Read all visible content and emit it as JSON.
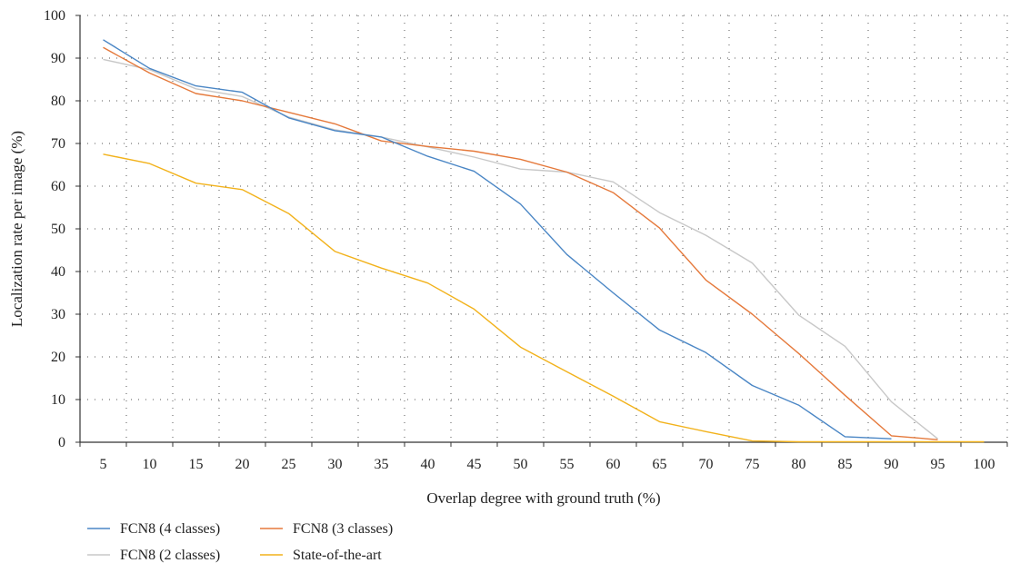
{
  "chart_data": {
    "type": "line",
    "title": "",
    "xlabel": "Overlap degree with ground truth (%)",
    "ylabel": "Localization rate per image (%)",
    "x": [
      5,
      10,
      15,
      20,
      25,
      30,
      35,
      40,
      45,
      50,
      55,
      60,
      65,
      70,
      75,
      80,
      85,
      90,
      95,
      100
    ],
    "xticks": [
      "5",
      "10",
      "15",
      "20",
      "25",
      "30",
      "35",
      "40",
      "45",
      "50",
      "55",
      "60",
      "65",
      "70",
      "75",
      "80",
      "85",
      "90",
      "95",
      "100"
    ],
    "yticks": [
      "0",
      "10",
      "20",
      "30",
      "40",
      "50",
      "60",
      "70",
      "80",
      "90",
      "100"
    ],
    "ylim": [
      0,
      100
    ],
    "grid": true,
    "legend_position": "bottom-left",
    "series": [
      {
        "name": "FCN8 (4 classes)",
        "color": "#4a86c5",
        "x": [
          5,
          10,
          15,
          20,
          25,
          30,
          35,
          40,
          45,
          50,
          55,
          60,
          65,
          70,
          75,
          80,
          85,
          90
        ],
        "values": [
          94.3,
          87.6,
          83.5,
          82.0,
          76.0,
          73.0,
          71.5,
          67.0,
          63.5,
          55.8,
          44.0,
          35.0,
          26.3,
          21.0,
          13.3,
          8.7,
          1.3,
          0.8
        ]
      },
      {
        "name": "FCN8 (3 classes)",
        "color": "#e5793b",
        "x": [
          5,
          10,
          15,
          20,
          25,
          30,
          35,
          40,
          45,
          50,
          55,
          60,
          65,
          70,
          75,
          80,
          85,
          90,
          95
        ],
        "values": [
          92.5,
          86.5,
          81.7,
          80.0,
          77.3,
          74.6,
          70.6,
          69.3,
          68.2,
          66.3,
          63.3,
          58.5,
          50.2,
          38.0,
          30.0,
          20.8,
          11.0,
          1.5,
          0.6
        ]
      },
      {
        "name": "FCN8 (2 classes)",
        "color": "#c8c8c8",
        "x": [
          5,
          10,
          15,
          20,
          25,
          30,
          35,
          40,
          45,
          50,
          55,
          60,
          65,
          70,
          75,
          80,
          85,
          90,
          95
        ],
        "values": [
          89.7,
          87.3,
          82.8,
          81.0,
          76.2,
          73.2,
          71.5,
          69.2,
          66.8,
          64.0,
          63.3,
          61.0,
          53.8,
          48.5,
          42.0,
          29.8,
          22.5,
          9.5,
          0.8
        ]
      },
      {
        "name": "State-of-the-art",
        "color": "#f2b21b",
        "x": [
          5,
          10,
          15,
          20,
          25,
          30,
          35,
          40,
          45,
          50,
          55,
          60,
          65,
          70,
          75,
          80,
          85,
          90,
          95,
          100
        ],
        "values": [
          67.5,
          65.3,
          60.7,
          59.2,
          53.6,
          44.7,
          40.8,
          37.3,
          31.2,
          22.3,
          16.5,
          10.8,
          4.8,
          2.5,
          0.3,
          0.1,
          0.1,
          0.1,
          0.1,
          0.1
        ]
      }
    ]
  }
}
